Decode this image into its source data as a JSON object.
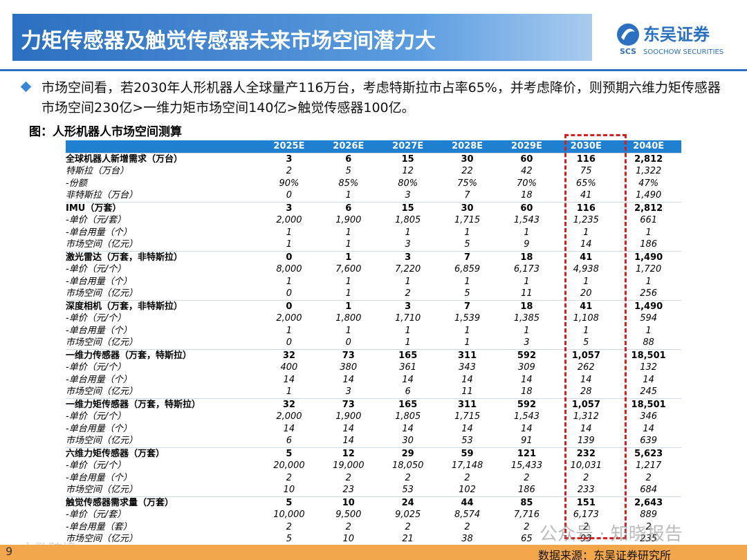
{
  "header": {
    "title": "力矩传感器及触觉传感器未来市场空间潜力大",
    "logo": {
      "mark": "SCS",
      "name": "东吴证券",
      "english": "SOOCHOW SECURITIES"
    }
  },
  "bullet": "市场空间看，若2030年人形机器人全球量产116万台，考虑特斯拉市占率65%，并考虑降价，则预期六维力矩传感器市场空间230亿>一维力矩市场空间140亿>触觉传感器100亿。",
  "caption": "图：人形机器人市场空间测算",
  "table": {
    "columns": [
      "2025E",
      "2026E",
      "2027E",
      "2028E",
      "2029E",
      "2030E",
      "2040E"
    ],
    "sections": [
      {
        "header": [
          "全球机器人新增需求（万台）",
          "3",
          "6",
          "15",
          "30",
          "60",
          "116",
          "2,812"
        ],
        "items": [
          [
            "特斯拉（万台）",
            "2",
            "5",
            "12",
            "22",
            "42",
            "75",
            "1,322"
          ],
          [
            "-份额",
            "90%",
            "85%",
            "80%",
            "75%",
            "70%",
            "65%",
            "47%"
          ],
          [
            "非特斯拉（万台）",
            "0",
            "1",
            "3",
            "7",
            "18",
            "41",
            "1,490"
          ]
        ]
      },
      {
        "header": [
          "IMU（万套）",
          "3",
          "6",
          "15",
          "30",
          "60",
          "116",
          "2,812"
        ],
        "items": [
          [
            "-单价（元/套）",
            "2,000",
            "1,900",
            "1,805",
            "1,715",
            "1,543",
            "1,235",
            "661"
          ],
          [
            "-单台用量（个）",
            "1",
            "1",
            "1",
            "1",
            "1",
            "1",
            "1"
          ],
          [
            "市场空间（亿元）",
            "1",
            "1",
            "3",
            "5",
            "9",
            "14",
            "186"
          ]
        ]
      },
      {
        "header": [
          "激光雷达（万套，非特斯拉）",
          "0",
          "1",
          "3",
          "7",
          "18",
          "41",
          "1,490"
        ],
        "items": [
          [
            "-单价（元/个）",
            "8,000",
            "7,600",
            "7,220",
            "6,859",
            "6,173",
            "4,938",
            "1,720"
          ],
          [
            "-单台用量（个）",
            "1",
            "1",
            "1",
            "1",
            "1",
            "1",
            "1"
          ],
          [
            "市场空间（亿元）",
            "0",
            "1",
            "2",
            "5",
            "11",
            "20",
            "256"
          ]
        ]
      },
      {
        "header": [
          "深度相机（万套，非特斯拉）",
          "0",
          "1",
          "3",
          "7",
          "18",
          "41",
          "1,490"
        ],
        "items": [
          [
            "-单价（元/个）",
            "2,000",
            "1,800",
            "1,710",
            "1,539",
            "1,385",
            "1,108",
            "594"
          ],
          [
            "-单台用量（个）",
            "1",
            "1",
            "1",
            "1",
            "1",
            "1",
            "1"
          ],
          [
            "市场空间（亿元）",
            "0",
            "0",
            "1",
            "1",
            "3",
            "5",
            "88"
          ]
        ]
      },
      {
        "header": [
          "一维力传感器（万套，特斯拉）",
          "32",
          "73",
          "165",
          "311",
          "592",
          "1,057",
          "18,501"
        ],
        "items": [
          [
            "-单价（元/个）",
            "400",
            "380",
            "361",
            "343",
            "309",
            "262",
            "132"
          ],
          [
            "-单台用量（个）",
            "14",
            "14",
            "14",
            "14",
            "14",
            "14",
            "14"
          ],
          [
            "市场空间（亿元）",
            "1",
            "3",
            "6",
            "11",
            "18",
            "28",
            "245"
          ]
        ]
      },
      {
        "header": [
          "一维力矩传感器（万套，特斯拉）",
          "32",
          "73",
          "165",
          "311",
          "592",
          "1,057",
          "18,501"
        ],
        "items": [
          [
            "-单价（元/个）",
            "2,000",
            "1,900",
            "1,805",
            "1,715",
            "1,543",
            "1,312",
            "346"
          ],
          [
            "-单台用量（个）",
            "14",
            "14",
            "14",
            "14",
            "14",
            "14",
            "14"
          ],
          [
            "市场空间（亿元）",
            "6",
            "14",
            "30",
            "53",
            "91",
            "139",
            "639"
          ]
        ]
      },
      {
        "header": [
          "六维力矩传感器（万套）",
          "5",
          "12",
          "29",
          "59",
          "121",
          "232",
          "5,623"
        ],
        "items": [
          [
            "-单价（元/个）",
            "20,000",
            "19,000",
            "18,050",
            "17,148",
            "15,433",
            "10,031",
            "1,217"
          ],
          [
            "-单台用量（个）",
            "2",
            "2",
            "2",
            "2",
            "2",
            "2",
            "2"
          ],
          [
            "市场空间（亿元）",
            "10",
            "23",
            "53",
            "102",
            "186",
            "233",
            "684"
          ]
        ]
      },
      {
        "header": [
          "触觉传感器需求量（万套）",
          "5",
          "10",
          "24",
          "44",
          "85",
          "151",
          "2,643"
        ],
        "items": [
          [
            "-单价（元/套）",
            "10,000",
            "9,500",
            "9,025",
            "8,574",
            "7,716",
            "6,173",
            "889"
          ],
          [
            "-单台用量（套）",
            "2",
            "2",
            "2",
            "2",
            "2",
            "2",
            "2"
          ],
          [
            "市场空间（亿元）",
            "5",
            "10",
            "21",
            "38",
            "65",
            "93",
            "235"
          ]
        ]
      }
    ]
  },
  "watermarks": [
    "公众号 · 知晓报告",
    "大数跨境"
  ],
  "footer": {
    "source": "数据来源：东吴证券研究所",
    "page": "9"
  }
}
